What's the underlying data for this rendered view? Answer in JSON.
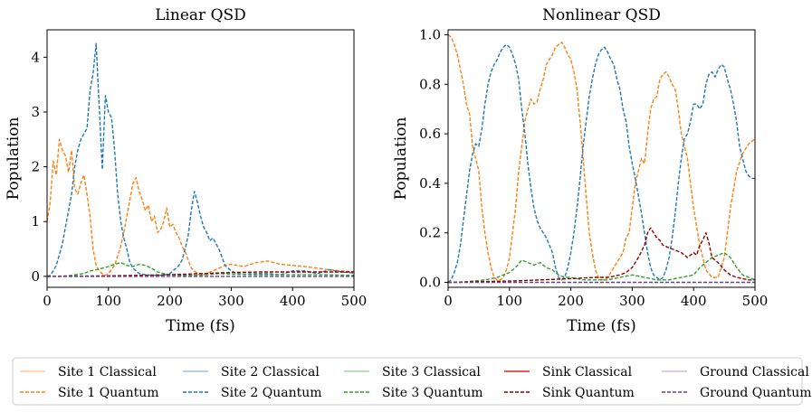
{
  "figure": {
    "legend": [
      {
        "label": "Site 1 Classical",
        "color": "#ff7f0e",
        "dash": "solid",
        "light": true
      },
      {
        "label": "Site 1 Quantum",
        "color": "#ff7f0e",
        "dash": "dashed",
        "light": false
      },
      {
        "label": "Site 2 Classical",
        "color": "#1f77b4",
        "dash": "solid",
        "light": true
      },
      {
        "label": "Site 2 Quantum",
        "color": "#1f77b4",
        "dash": "dashed",
        "light": false
      },
      {
        "label": "Site 3 Classical",
        "color": "#2ca02c",
        "dash": "solid",
        "light": true
      },
      {
        "label": "Site 3 Quantum",
        "color": "#2ca02c",
        "dash": "dashed",
        "light": false
      },
      {
        "label": "Sink Classical",
        "color": "#d62728",
        "dash": "solid",
        "light": false
      },
      {
        "label": "Sink Quantum",
        "color": "#8b0000",
        "dash": "dashed",
        "light": false
      },
      {
        "label": "Ground Classical",
        "color": "#9467bd",
        "dash": "solid",
        "light": true
      },
      {
        "label": "Ground Quantum",
        "color": "#6a3d9a",
        "dash": "dashed",
        "light": false
      }
    ]
  },
  "chart_data": [
    {
      "type": "line",
      "title": "Linear QSD",
      "xlabel": "Time (fs)",
      "ylabel": "Population",
      "xlim": [
        0,
        500
      ],
      "ylim": [
        -0.2,
        4.5
      ],
      "xticks": [
        "0",
        "100",
        "200",
        "300",
        "400",
        "500"
      ],
      "yticks": [
        "0",
        "1",
        "2",
        "3",
        "4"
      ],
      "grid": false,
      "series": [
        {
          "name": "Site 1 Quantum",
          "color": "#ff7f0e",
          "dash": "dashed",
          "x": [
            0,
            5,
            10,
            15,
            20,
            25,
            30,
            35,
            40,
            45,
            50,
            55,
            60,
            65,
            70,
            75,
            80,
            85,
            90,
            95,
            100,
            110,
            120,
            125,
            130,
            135,
            140,
            145,
            150,
            155,
            160,
            165,
            170,
            175,
            180,
            185,
            190,
            195,
            200,
            205,
            210,
            215,
            220,
            225,
            230,
            235,
            240,
            245,
            250,
            260,
            270,
            280,
            290,
            300,
            320,
            340,
            360,
            380,
            400,
            420,
            440,
            460,
            480,
            500
          ],
          "y": [
            1.0,
            1.35,
            2.1,
            1.85,
            2.5,
            2.3,
            2.2,
            1.9,
            2.3,
            1.6,
            1.5,
            1.7,
            1.85,
            1.5,
            1.1,
            0.5,
            0.2,
            0.1,
            0.05,
            0.02,
            0.05,
            0.2,
            0.55,
            0.8,
            1.1,
            1.4,
            1.7,
            1.8,
            1.55,
            1.4,
            1.2,
            1.3,
            1.0,
            1.1,
            0.8,
            0.85,
            1.0,
            1.25,
            0.9,
            0.95,
            0.8,
            0.7,
            0.55,
            0.45,
            0.3,
            0.15,
            0.1,
            0.05,
            0.02,
            0.05,
            0.1,
            0.15,
            0.2,
            0.22,
            0.18,
            0.25,
            0.28,
            0.22,
            0.2,
            0.18,
            0.15,
            0.12,
            0.1,
            0.08
          ]
        },
        {
          "name": "Site 2 Quantum",
          "color": "#1f77b4",
          "dash": "dashed",
          "x": [
            0,
            5,
            10,
            15,
            20,
            25,
            30,
            35,
            40,
            45,
            50,
            55,
            60,
            65,
            70,
            75,
            80,
            85,
            90,
            95,
            100,
            105,
            110,
            115,
            120,
            125,
            130,
            135,
            140,
            145,
            150,
            160,
            170,
            180,
            190,
            200,
            205,
            210,
            215,
            220,
            225,
            230,
            235,
            240,
            245,
            250,
            255,
            260,
            265,
            270,
            275,
            280,
            285,
            290,
            295,
            300,
            310,
            320,
            340,
            360,
            380,
            400,
            420,
            440,
            460,
            480,
            500
          ],
          "y": [
            0,
            0.02,
            0.1,
            0.2,
            0.4,
            0.6,
            0.9,
            1.2,
            1.5,
            2.0,
            2.3,
            2.5,
            2.6,
            2.7,
            3.4,
            3.7,
            4.25,
            3.1,
            1.95,
            3.3,
            3.0,
            2.9,
            2.3,
            1.5,
            1.0,
            0.7,
            0.5,
            0.25,
            0.15,
            0.1,
            0.05,
            0.03,
            0.02,
            0.02,
            0.02,
            0.05,
            0.1,
            0.15,
            0.2,
            0.3,
            0.5,
            0.75,
            1.2,
            1.55,
            1.35,
            1.1,
            0.9,
            0.8,
            0.65,
            0.7,
            0.6,
            0.5,
            0.35,
            0.2,
            0.15,
            0.1,
            0.05,
            0.04,
            0.05,
            0.05,
            0.03,
            0.1,
            0.1,
            0.05,
            0.12,
            0.08,
            0.06
          ]
        },
        {
          "name": "Site 3 Quantum",
          "color": "#2ca02c",
          "dash": "dashed",
          "x": [
            0,
            20,
            40,
            60,
            70,
            80,
            90,
            100,
            110,
            120,
            130,
            140,
            150,
            160,
            170,
            180,
            190,
            200,
            220,
            240,
            260,
            280,
            300,
            350,
            400,
            450,
            500
          ],
          "y": [
            0,
            0,
            0.02,
            0.05,
            0.1,
            0.12,
            0.15,
            0.18,
            0.22,
            0.25,
            0.2,
            0.18,
            0.22,
            0.2,
            0.15,
            0.08,
            0.05,
            0.03,
            0.02,
            0.02,
            0.03,
            0.05,
            0.04,
            0.03,
            0.03,
            0.03,
            0.02
          ]
        },
        {
          "name": "Sink Quantum",
          "color": "#8b0000",
          "dash": "dashed",
          "x": [
            0,
            50,
            100,
            150,
            200,
            250,
            300,
            350,
            400,
            450,
            500
          ],
          "y": [
            0,
            0.005,
            0.01,
            0.02,
            0.03,
            0.05,
            0.07,
            0.08,
            0.08,
            0.08,
            0.08
          ]
        },
        {
          "name": "Ground Quantum",
          "color": "#6a3d9a",
          "dash": "dashed",
          "x": [
            0,
            500
          ],
          "y": [
            0,
            0
          ]
        }
      ]
    },
    {
      "type": "line",
      "title": "Nonlinear QSD",
      "xlabel": "Time (fs)",
      "ylabel": "Population",
      "xlim": [
        0,
        500
      ],
      "ylim": [
        -0.02,
        1.02
      ],
      "xticks": [
        "0",
        "100",
        "200",
        "300",
        "400",
        "500"
      ],
      "yticks": [
        "0.0",
        "0.2",
        "0.4",
        "0.6",
        "0.8",
        "1.0"
      ],
      "grid": false,
      "series": [
        {
          "name": "Site 1 Quantum",
          "color": "#ff7f0e",
          "dash": "dashed",
          "x": [
            0,
            5,
            10,
            15,
            20,
            25,
            30,
            35,
            40,
            45,
            50,
            55,
            60,
            65,
            70,
            75,
            80,
            85,
            90,
            95,
            100,
            105,
            110,
            115,
            120,
            125,
            130,
            135,
            140,
            145,
            150,
            155,
            160,
            165,
            170,
            175,
            180,
            185,
            190,
            195,
            200,
            205,
            210,
            215,
            220,
            225,
            230,
            235,
            240,
            245,
            250,
            255,
            260,
            265,
            270,
            275,
            280,
            285,
            290,
            295,
            300,
            305,
            310,
            315,
            320,
            325,
            330,
            335,
            340,
            345,
            350,
            355,
            360,
            365,
            370,
            375,
            380,
            385,
            390,
            395,
            400,
            410,
            420,
            430,
            440,
            450,
            460,
            470,
            480,
            490,
            500
          ],
          "y": [
            1.0,
            0.99,
            0.96,
            0.92,
            0.86,
            0.8,
            0.72,
            0.68,
            0.55,
            0.5,
            0.45,
            0.3,
            0.2,
            0.12,
            0.06,
            0.02,
            0.01,
            0.01,
            0.02,
            0.05,
            0.1,
            0.2,
            0.3,
            0.45,
            0.55,
            0.65,
            0.7,
            0.74,
            0.72,
            0.73,
            0.78,
            0.82,
            0.88,
            0.9,
            0.92,
            0.95,
            0.96,
            0.97,
            0.95,
            0.92,
            0.9,
            0.85,
            0.78,
            0.65,
            0.5,
            0.35,
            0.2,
            0.12,
            0.05,
            0.02,
            0.01,
            0.01,
            0.02,
            0.04,
            0.06,
            0.08,
            0.1,
            0.12,
            0.18,
            0.2,
            0.3,
            0.4,
            0.45,
            0.5,
            0.48,
            0.6,
            0.7,
            0.74,
            0.75,
            0.82,
            0.84,
            0.85,
            0.83,
            0.8,
            0.78,
            0.7,
            0.6,
            0.55,
            0.5,
            0.4,
            0.3,
            0.15,
            0.05,
            0.02,
            0.02,
            0.1,
            0.3,
            0.45,
            0.52,
            0.56,
            0.58
          ]
        },
        {
          "name": "Site 2 Quantum",
          "color": "#1f77b4",
          "dash": "dashed",
          "x": [
            0,
            5,
            10,
            15,
            20,
            25,
            30,
            35,
            40,
            45,
            50,
            55,
            60,
            65,
            70,
            75,
            80,
            85,
            90,
            95,
            100,
            105,
            110,
            115,
            120,
            125,
            130,
            135,
            140,
            145,
            150,
            155,
            160,
            165,
            170,
            175,
            180,
            185,
            190,
            195,
            200,
            205,
            210,
            215,
            220,
            225,
            230,
            235,
            240,
            245,
            250,
            255,
            260,
            265,
            270,
            275,
            280,
            285,
            290,
            295,
            300,
            305,
            310,
            315,
            320,
            325,
            330,
            335,
            340,
            345,
            350,
            355,
            360,
            365,
            370,
            375,
            380,
            385,
            390,
            395,
            400,
            405,
            410,
            415,
            420,
            425,
            430,
            435,
            440,
            445,
            450,
            455,
            460,
            465,
            470,
            475,
            480,
            485,
            490,
            495,
            500
          ],
          "y": [
            0,
            0.01,
            0.04,
            0.08,
            0.15,
            0.25,
            0.35,
            0.45,
            0.52,
            0.56,
            0.55,
            0.62,
            0.72,
            0.8,
            0.85,
            0.88,
            0.9,
            0.93,
            0.95,
            0.96,
            0.95,
            0.92,
            0.88,
            0.82,
            0.7,
            0.6,
            0.48,
            0.38,
            0.3,
            0.25,
            0.22,
            0.2,
            0.18,
            0.15,
            0.12,
            0.06,
            0.02,
            0.01,
            0.02,
            0.06,
            0.12,
            0.2,
            0.3,
            0.42,
            0.55,
            0.65,
            0.75,
            0.82,
            0.88,
            0.92,
            0.94,
            0.95,
            0.93,
            0.9,
            0.88,
            0.82,
            0.78,
            0.7,
            0.65,
            0.55,
            0.48,
            0.42,
            0.35,
            0.28,
            0.2,
            0.12,
            0.06,
            0.03,
            0.02,
            0.01,
            0.02,
            0.05,
            0.1,
            0.18,
            0.28,
            0.4,
            0.5,
            0.58,
            0.6,
            0.65,
            0.72,
            0.72,
            0.7,
            0.72,
            0.8,
            0.84,
            0.85,
            0.83,
            0.86,
            0.88,
            0.87,
            0.82,
            0.78,
            0.72,
            0.65,
            0.55,
            0.5,
            0.45,
            0.43,
            0.42,
            0.42
          ]
        },
        {
          "name": "Site 3 Quantum",
          "color": "#2ca02c",
          "dash": "dashed",
          "x": [
            0,
            20,
            40,
            60,
            80,
            100,
            110,
            120,
            130,
            140,
            150,
            160,
            170,
            180,
            190,
            200,
            220,
            240,
            260,
            280,
            300,
            320,
            340,
            360,
            380,
            400,
            410,
            420,
            430,
            440,
            450,
            460,
            470,
            480,
            490,
            500
          ],
          "y": [
            0,
            0,
            0.005,
            0.01,
            0.02,
            0.04,
            0.06,
            0.09,
            0.08,
            0.07,
            0.08,
            0.06,
            0.05,
            0.03,
            0.02,
            0.02,
            0.01,
            0.01,
            0.01,
            0.02,
            0.03,
            0.02,
            0.01,
            0.01,
            0.02,
            0.03,
            0.06,
            0.08,
            0.1,
            0.11,
            0.12,
            0.1,
            0.06,
            0.03,
            0.02,
            0.01
          ]
        },
        {
          "name": "Sink Quantum",
          "color": "#8b0000",
          "dash": "dashed",
          "x": [
            0,
            50,
            100,
            150,
            200,
            240,
            260,
            280,
            290,
            300,
            310,
            320,
            325,
            330,
            335,
            340,
            345,
            350,
            360,
            370,
            380,
            390,
            400,
            405,
            410,
            415,
            420,
            425,
            430,
            440,
            450,
            460,
            470,
            480,
            490,
            500
          ],
          "y": [
            0,
            0.003,
            0.005,
            0.01,
            0.015,
            0.02,
            0.02,
            0.03,
            0.04,
            0.06,
            0.1,
            0.15,
            0.2,
            0.22,
            0.2,
            0.18,
            0.17,
            0.15,
            0.14,
            0.13,
            0.12,
            0.1,
            0.12,
            0.11,
            0.15,
            0.17,
            0.2,
            0.16,
            0.1,
            0.08,
            0.05,
            0.03,
            0.02,
            0.015,
            0.01,
            0.01
          ]
        },
        {
          "name": "Ground Quantum",
          "color": "#6a3d9a",
          "dash": "dashed",
          "x": [
            0,
            500
          ],
          "y": [
            0,
            0
          ]
        }
      ]
    }
  ]
}
